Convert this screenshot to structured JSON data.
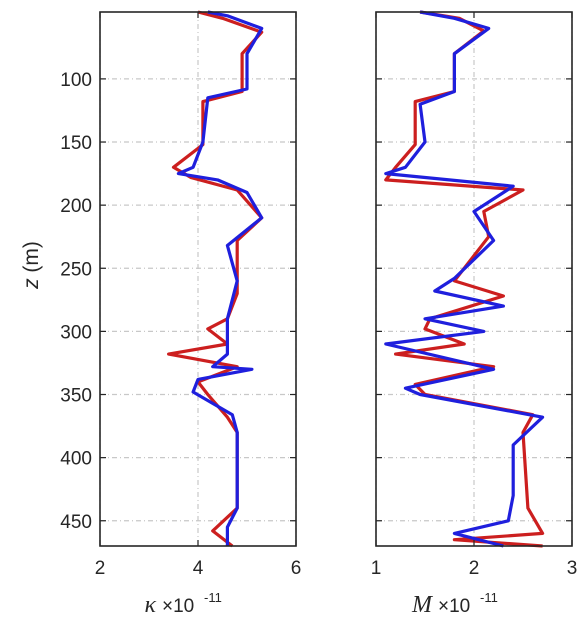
{
  "chart_data": [
    {
      "type": "line",
      "title": "",
      "xlabel": "κ",
      "xlabel_exponent_base": "×10",
      "xlabel_exponent_power": "-11",
      "ylabel": "z (m)",
      "xlim": [
        2,
        6
      ],
      "ylim": [
        470,
        47
      ],
      "y_reversed": true,
      "x_ticks": [
        2,
        4,
        6
      ],
      "y_ticks": [
        100,
        150,
        200,
        250,
        300,
        350,
        400,
        450
      ],
      "grid": true,
      "series": [
        {
          "color": "#cc1f1f",
          "points": [
            [
              4.0,
              47
            ],
            [
              4.5,
              52
            ],
            [
              5.3,
              63
            ],
            [
              4.9,
              80
            ],
            [
              4.9,
              110
            ],
            [
              4.1,
              118
            ],
            [
              4.1,
              152
            ],
            [
              3.5,
              170
            ],
            [
              3.85,
              178
            ],
            [
              4.8,
              188
            ],
            [
              5.3,
              210
            ],
            [
              4.8,
              228
            ],
            [
              4.8,
              270
            ],
            [
              4.6,
              290
            ],
            [
              4.2,
              298
            ],
            [
              4.6,
              310
            ],
            [
              3.4,
              318
            ],
            [
              4.8,
              328
            ],
            [
              4.0,
              340
            ],
            [
              4.2,
              350
            ],
            [
              4.6,
              368
            ],
            [
              4.8,
              380
            ],
            [
              4.8,
              440
            ],
            [
              4.3,
              458
            ],
            [
              4.7,
              470
            ]
          ]
        },
        {
          "color": "#1f1fdd",
          "points": [
            [
              4.2,
              47
            ],
            [
              4.6,
              50
            ],
            [
              5.3,
              60
            ],
            [
              5.0,
              80
            ],
            [
              5.0,
              108
            ],
            [
              4.2,
              115
            ],
            [
              4.1,
              150
            ],
            [
              3.9,
              170
            ],
            [
              3.6,
              175
            ],
            [
              4.4,
              180
            ],
            [
              5.0,
              190
            ],
            [
              5.3,
              210
            ],
            [
              4.6,
              232
            ],
            [
              4.8,
              260
            ],
            [
              4.6,
              290
            ],
            [
              4.6,
              318
            ],
            [
              4.3,
              328
            ],
            [
              5.1,
              330
            ],
            [
              4.0,
              338
            ],
            [
              3.9,
              348
            ],
            [
              4.7,
              366
            ],
            [
              4.8,
              380
            ],
            [
              4.8,
              440
            ],
            [
              4.6,
              455
            ],
            [
              4.6,
              470
            ]
          ]
        }
      ]
    },
    {
      "type": "line",
      "title": "",
      "xlabel": "M",
      "xlabel_exponent_base": "×10",
      "xlabel_exponent_power": "-11",
      "ylabel": "",
      "xlim": [
        1,
        3
      ],
      "ylim": [
        470,
        47
      ],
      "y_reversed": true,
      "x_ticks": [
        1,
        2,
        3
      ],
      "y_ticks": [
        100,
        150,
        200,
        250,
        300,
        350,
        400,
        450
      ],
      "grid": true,
      "series": [
        {
          "color": "#cc1f1f",
          "points": [
            [
              1.45,
              47
            ],
            [
              1.85,
              52
            ],
            [
              2.1,
              62
            ],
            [
              1.8,
              80
            ],
            [
              1.8,
              110
            ],
            [
              1.4,
              118
            ],
            [
              1.4,
              152
            ],
            [
              1.2,
              170
            ],
            [
              1.1,
              180
            ],
            [
              2.5,
              188
            ],
            [
              2.1,
              205
            ],
            [
              2.15,
              225
            ],
            [
              1.8,
              260
            ],
            [
              2.3,
              272
            ],
            [
              1.55,
              290
            ],
            [
              1.5,
              298
            ],
            [
              1.9,
              310
            ],
            [
              1.2,
              318
            ],
            [
              2.2,
              328
            ],
            [
              1.4,
              342
            ],
            [
              1.5,
              350
            ],
            [
              2.6,
              366
            ],
            [
              2.5,
              380
            ],
            [
              2.55,
              440
            ],
            [
              2.7,
              460
            ],
            [
              1.8,
              465
            ],
            [
              2.7,
              470
            ]
          ]
        },
        {
          "color": "#1f1fdd",
          "points": [
            [
              1.45,
              47
            ],
            [
              1.8,
              52
            ],
            [
              2.15,
              60
            ],
            [
              1.8,
              80
            ],
            [
              1.8,
              110
            ],
            [
              1.45,
              120
            ],
            [
              1.5,
              150
            ],
            [
              1.3,
              170
            ],
            [
              1.1,
              175
            ],
            [
              2.4,
              185
            ],
            [
              2.0,
              205
            ],
            [
              2.2,
              228
            ],
            [
              1.8,
              258
            ],
            [
              1.6,
              268
            ],
            [
              2.3,
              280
            ],
            [
              1.5,
              290
            ],
            [
              2.1,
              300
            ],
            [
              1.1,
              310
            ],
            [
              2.2,
              330
            ],
            [
              1.3,
              345
            ],
            [
              1.45,
              350
            ],
            [
              2.7,
              368
            ],
            [
              2.4,
              390
            ],
            [
              2.4,
              430
            ],
            [
              2.35,
              450
            ],
            [
              1.8,
              460
            ],
            [
              2.3,
              470
            ]
          ]
        }
      ]
    }
  ]
}
